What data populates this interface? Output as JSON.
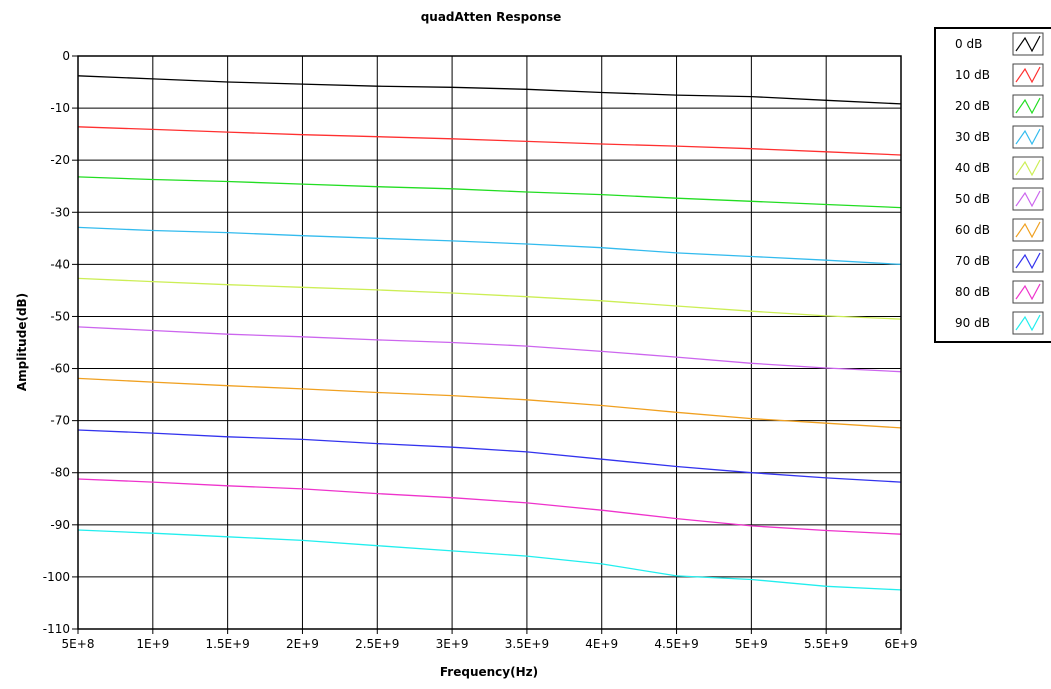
{
  "chart_data": {
    "type": "line",
    "title": "quadAtten Response",
    "xlabel": "Frequency(Hz)",
    "ylabel": "Amplitude(dB)",
    "xlim": [
      500000000,
      6000000000
    ],
    "ylim": [
      -110,
      0
    ],
    "grid": true,
    "legend_position": "top-right",
    "x_ticks": [
      {
        "value": 500000000,
        "label": "5E+8"
      },
      {
        "value": 1000000000,
        "label": "1E+9"
      },
      {
        "value": 1500000000,
        "label": "1.5E+9"
      },
      {
        "value": 2000000000,
        "label": "2E+9"
      },
      {
        "value": 2500000000,
        "label": "2.5E+9"
      },
      {
        "value": 3000000000,
        "label": "3E+9"
      },
      {
        "value": 3500000000,
        "label": "3.5E+9"
      },
      {
        "value": 4000000000,
        "label": "4E+9"
      },
      {
        "value": 4500000000,
        "label": "4.5E+9"
      },
      {
        "value": 5000000000,
        "label": "5E+9"
      },
      {
        "value": 5500000000,
        "label": "5.5E+9"
      },
      {
        "value": 6000000000,
        "label": "6E+9"
      }
    ],
    "y_ticks": [
      {
        "value": 0,
        "label": "0"
      },
      {
        "value": -10,
        "label": "-10"
      },
      {
        "value": -20,
        "label": "-20"
      },
      {
        "value": -30,
        "label": "-30"
      },
      {
        "value": -40,
        "label": "-40"
      },
      {
        "value": -50,
        "label": "-50"
      },
      {
        "value": -60,
        "label": "-60"
      },
      {
        "value": -70,
        "label": "-70"
      },
      {
        "value": -80,
        "label": "-80"
      },
      {
        "value": -90,
        "label": "-90"
      },
      {
        "value": -100,
        "label": "-100"
      },
      {
        "value": -110,
        "label": "-110"
      }
    ],
    "x": [
      500000000,
      1000000000,
      1500000000,
      2000000000,
      2500000000,
      3000000000,
      3500000000,
      4000000000,
      4500000000,
      5000000000,
      5500000000,
      6000000000
    ],
    "series": [
      {
        "name": "0 dB",
        "color": "#000000",
        "values": [
          -3.8,
          -4.4,
          -5.0,
          -5.4,
          -5.8,
          -6.0,
          -6.4,
          -7.0,
          -7.5,
          -7.8,
          -8.5,
          -9.2
        ]
      },
      {
        "name": "10 dB",
        "color": "#ff3030",
        "values": [
          -13.6,
          -14.1,
          -14.6,
          -15.1,
          -15.5,
          -15.9,
          -16.4,
          -16.9,
          -17.3,
          -17.8,
          -18.4,
          -19.0
        ]
      },
      {
        "name": "20 dB",
        "color": "#22dd22",
        "values": [
          -23.2,
          -23.7,
          -24.1,
          -24.6,
          -25.1,
          -25.5,
          -26.1,
          -26.6,
          -27.3,
          -27.9,
          -28.5,
          -29.1
        ]
      },
      {
        "name": "30 dB",
        "color": "#33bbee",
        "values": [
          -32.9,
          -33.5,
          -33.9,
          -34.5,
          -35.0,
          -35.5,
          -36.1,
          -36.8,
          -37.8,
          -38.5,
          -39.2,
          -40.0
        ]
      },
      {
        "name": "40 dB",
        "color": "#ccee55",
        "values": [
          -42.7,
          -43.3,
          -43.9,
          -44.4,
          -44.9,
          -45.5,
          -46.2,
          -47.0,
          -48.0,
          -49.0,
          -49.9,
          -50.5
        ]
      },
      {
        "name": "50 dB",
        "color": "#cc66ee",
        "values": [
          -52.0,
          -52.7,
          -53.4,
          -53.9,
          -54.5,
          -55.0,
          -55.7,
          -56.7,
          -57.8,
          -59.0,
          -59.9,
          -60.6
        ]
      },
      {
        "name": "60 dB",
        "color": "#f0a020",
        "values": [
          -61.9,
          -62.6,
          -63.3,
          -63.9,
          -64.6,
          -65.2,
          -66.0,
          -67.1,
          -68.4,
          -69.6,
          -70.5,
          -71.4
        ]
      },
      {
        "name": "70 dB",
        "color": "#3333ee",
        "values": [
          -71.8,
          -72.4,
          -73.1,
          -73.6,
          -74.4,
          -75.1,
          -76.0,
          -77.4,
          -78.8,
          -80.0,
          -81.0,
          -81.8
        ]
      },
      {
        "name": "80 dB",
        "color": "#ee33cc",
        "values": [
          -81.2,
          -81.8,
          -82.5,
          -83.1,
          -84.0,
          -84.8,
          -85.8,
          -87.2,
          -88.8,
          -90.2,
          -91.1,
          -91.8
        ]
      },
      {
        "name": "90 dB",
        "color": "#22eeee",
        "values": [
          -91.0,
          -91.6,
          -92.3,
          -93.0,
          -94.0,
          -95.0,
          -96.0,
          -97.5,
          -99.8,
          -100.5,
          -101.8,
          -102.5
        ]
      }
    ]
  }
}
